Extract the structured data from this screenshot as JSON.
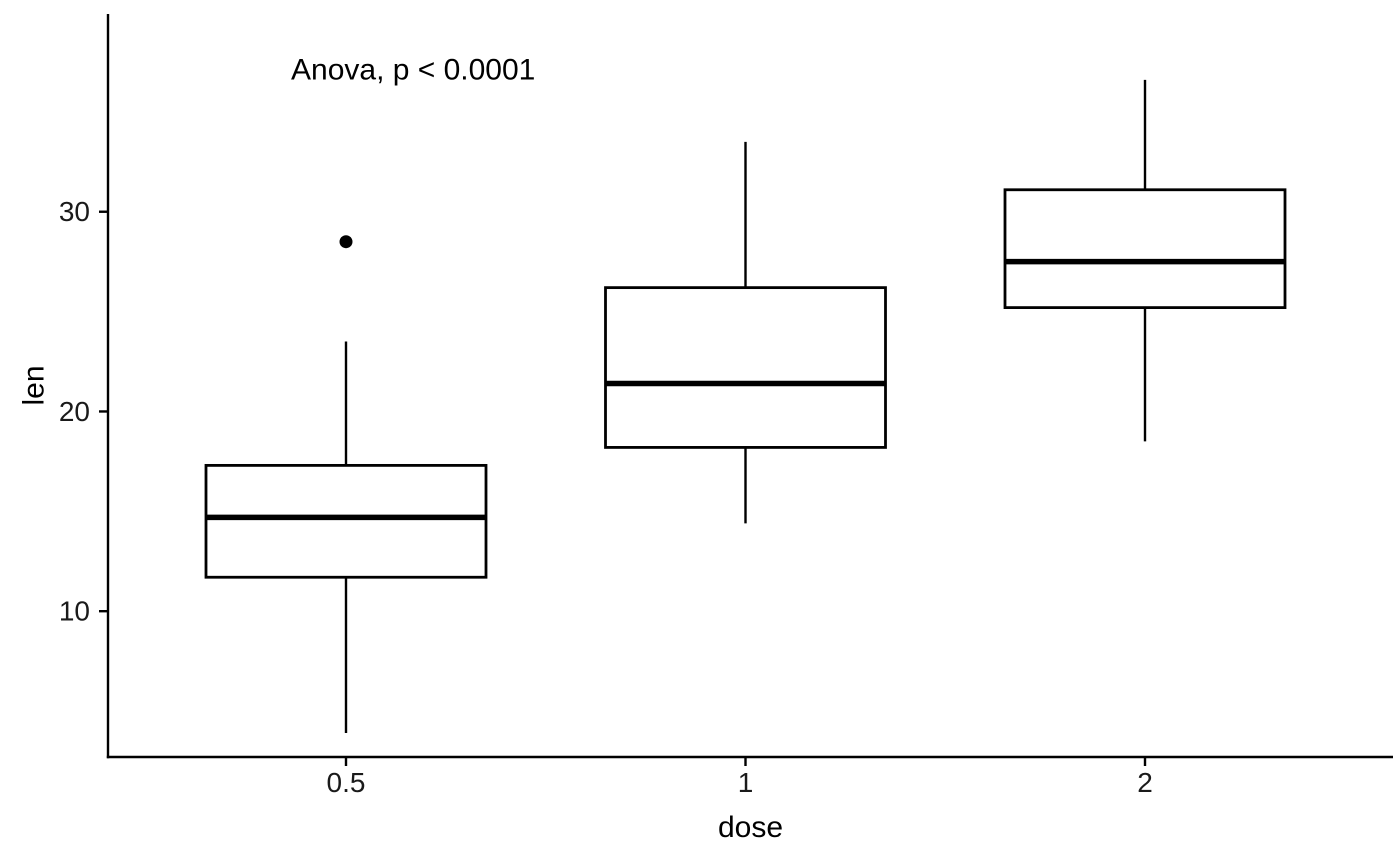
{
  "chart_data": {
    "type": "boxplot",
    "annotation": "Anova, p < 0.0001",
    "xlabel": "dose",
    "ylabel": "len",
    "categories": [
      "0.5",
      "1",
      "2"
    ],
    "y_ticks": [
      "10",
      "20",
      "30"
    ],
    "y_tick_values": [
      10,
      20,
      30
    ],
    "ylim": [
      2.7,
      39.9
    ],
    "grid": false,
    "legend": false,
    "series": [
      {
        "category": "0.5",
        "min": 3.9,
        "q1": 11.7,
        "median": 14.7,
        "q3": 17.3,
        "max": 23.5,
        "outliers": [
          28.5
        ]
      },
      {
        "category": "1",
        "min": 14.4,
        "q1": 18.2,
        "median": 21.4,
        "q3": 26.2,
        "max": 33.5,
        "outliers": []
      },
      {
        "category": "2",
        "min": 18.5,
        "q1": 25.2,
        "median": 27.5,
        "q3": 31.1,
        "max": 36.6,
        "outliers": []
      }
    ],
    "colors": {
      "stroke": "#000000",
      "fill": "#ffffff",
      "background": "#ffffff",
      "text": "#1a1a1a",
      "title_text": "#000000"
    }
  }
}
